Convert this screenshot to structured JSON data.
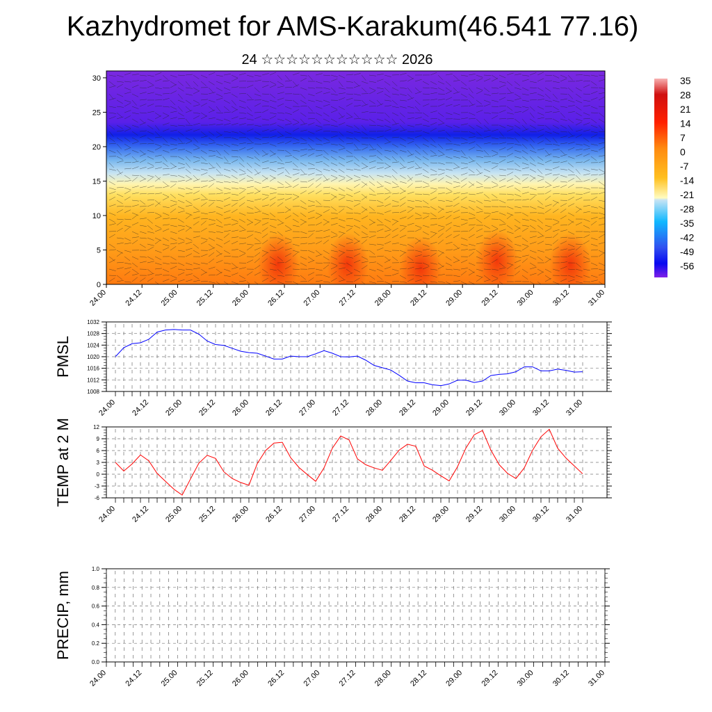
{
  "title": "Kazhydromet for AMS-Karakum(46.541 77.16)",
  "subtitle": "24 ☆☆☆☆☆☆☆☆☆☆☆ 2026",
  "chart_data": [
    {
      "type": "heatmap",
      "name": "temperature-height-section",
      "ylabel": "",
      "yticks": [
        0,
        5,
        10,
        15,
        20,
        25,
        30
      ],
      "ylim": [
        0,
        31
      ],
      "xticks": [
        "24.00",
        "24.12",
        "25.00",
        "25.12",
        "26.00",
        "26.12",
        "27.00",
        "27.12",
        "28.00",
        "28.12",
        "29.00",
        "29.12",
        "30.00",
        "30.12",
        "31.00"
      ],
      "colorbar": {
        "labels": [
          "35",
          "28",
          "21",
          "14",
          "7",
          "0",
          "-7",
          "-14",
          "-21",
          "-28",
          "-35",
          "-42",
          "-49",
          "-56"
        ]
      },
      "colors": {
        "warm": "#ff4010",
        "orange": "#ff9a10",
        "yellow": "#ffd830",
        "lightblue": "#bfe0f0",
        "blue": "#2040ff",
        "purple": "#7020e0"
      },
      "overlay": "wind barbs"
    },
    {
      "type": "line",
      "name": "pmsl",
      "ylabel": "PMSL",
      "ylim": [
        1008,
        1032
      ],
      "yticks": [
        1008,
        1012,
        1016,
        1020,
        1024,
        1028,
        1032
      ],
      "xticks": [
        "24.00",
        "24.12",
        "25.00",
        "25.12",
        "26.00",
        "26.12",
        "27.00",
        "27.12",
        "28.00",
        "28.12",
        "29.00",
        "29.12",
        "30.00",
        "30.12",
        "31.00"
      ],
      "color": "#0000ff",
      "step_hours": 3,
      "values": [
        1020,
        1023.1,
        1024.5,
        1024.8,
        1026,
        1028.5,
        1029.2,
        1029.4,
        1029.2,
        1029.2,
        1027.8,
        1025.4,
        1024.2,
        1023.9,
        1022.9,
        1021.9,
        1021.4,
        1021.2,
        1020.2,
        1019.2,
        1019.2,
        1020.2,
        1020,
        1020,
        1021,
        1022.1,
        1021.2,
        1020,
        1019.9,
        1020.2,
        1018.8,
        1017,
        1016.2,
        1015.4,
        1013.6,
        1011.6,
        1011,
        1011,
        1010.3,
        1010,
        1010.6,
        1011.9,
        1011.9,
        1011.1,
        1011.6,
        1013.5,
        1013.9,
        1014.1,
        1014.8,
        1016.5,
        1016.5,
        1015.1,
        1015.1,
        1015.7,
        1015.3,
        1014.7,
        1014.8
      ]
    },
    {
      "type": "line",
      "name": "temp2m",
      "ylabel": "TEMP at 2 M",
      "ylim": [
        -6,
        12
      ],
      "yticks": [
        -6,
        -3,
        0,
        3,
        6,
        9,
        12
      ],
      "xticks": [
        "24.00",
        "24.12",
        "25.00",
        "25.12",
        "26.00",
        "26.12",
        "27.00",
        "27.12",
        "28.00",
        "28.12",
        "29.00",
        "29.12",
        "30.00",
        "30.12",
        "31.00"
      ],
      "color": "#ff0000",
      "step_hours": 3,
      "values": [
        3,
        0.8,
        2.6,
        4.9,
        3.4,
        0.2,
        -1.8,
        -3.8,
        -5.3,
        -1.2,
        2.8,
        4.8,
        4,
        0.6,
        -1.1,
        -2.1,
        -2.8,
        2.7,
        6,
        7.9,
        8.1,
        4.2,
        1.7,
        -0.1,
        -1.8,
        1.6,
        6.6,
        9.7,
        8.7,
        3.9,
        2.4,
        1.6,
        1,
        3.5,
        6.1,
        7.6,
        7.1,
        2.1,
        1,
        -0.4,
        -1.7,
        1.9,
        6.6,
        10,
        11.1,
        6.1,
        2.4,
        0.2,
        -1.1,
        1.6,
        6.1,
        9.5,
        11.4,
        6.6,
        4.1,
        2.1,
        0.1
      ]
    },
    {
      "type": "bar",
      "name": "precip",
      "ylabel": "PRECIP, mm",
      "ylim": [
        0,
        1
      ],
      "yticks": [
        "0.0",
        "0.2",
        "0.4",
        "0.6",
        "0.8",
        "1.0"
      ],
      "xticks": [
        "24.00",
        "24.12",
        "25.00",
        "25.12",
        "26.00",
        "26.12",
        "27.00",
        "27.12",
        "28.00",
        "28.12",
        "29.00",
        "29.12",
        "30.00",
        "30.12",
        "31.00"
      ],
      "values": []
    }
  ]
}
